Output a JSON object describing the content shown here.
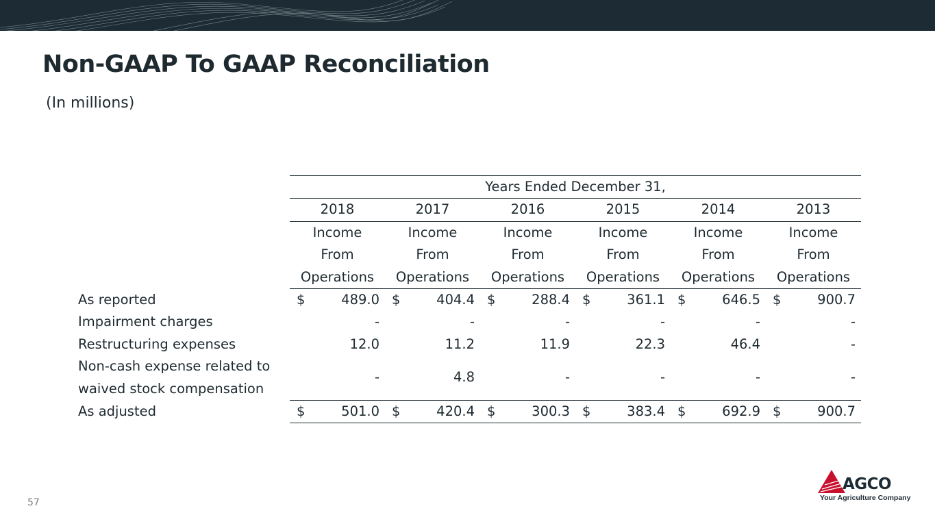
{
  "header": {
    "title": "Non-GAAP To GAAP Reconciliation",
    "subtitle": "(In millions)"
  },
  "table": {
    "period_header": "Years Ended December 31,",
    "years": [
      "2018",
      "2017",
      "2016",
      "2015",
      "2014",
      "2013"
    ],
    "metric_line1": "Income",
    "metric_line2": "From",
    "metric_line3": "Operations",
    "currency_symbol": "$",
    "rows": [
      {
        "label": "As reported",
        "values": [
          "489.0",
          "404.4",
          "288.4",
          "361.1",
          "646.5",
          "900.7"
        ]
      },
      {
        "label": "Impairment charges",
        "values": [
          "-",
          "-",
          "-",
          "-",
          "-",
          "-"
        ]
      },
      {
        "label": "Restructuring expenses",
        "values": [
          "12.0",
          "11.2",
          "11.9",
          "22.3",
          "46.4",
          "-"
        ]
      },
      {
        "label": "Non-cash expense related to waived stock compensation",
        "values": [
          "-",
          "4.8",
          "-",
          "-",
          "-",
          "-"
        ]
      },
      {
        "label": "As adjusted",
        "values": [
          "501.0",
          "420.4",
          "300.3",
          "383.4",
          "692.9",
          "900.7"
        ]
      }
    ]
  },
  "footer": {
    "page_number": "57",
    "logo_text": "AGCO",
    "logo_tagline": "Your Agriculture Company"
  },
  "colors": {
    "banner": "#1c2b34",
    "text": "#1e2a30",
    "logo_red": "#c8102e"
  }
}
